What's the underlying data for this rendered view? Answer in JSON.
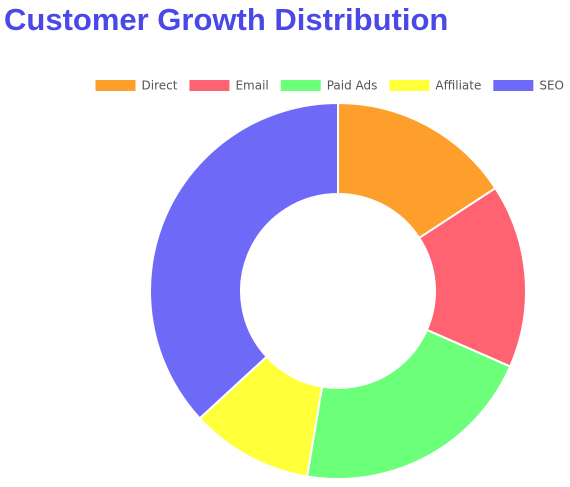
{
  "chart_data": {
    "type": "doughnut",
    "title": "Customer Growth Distribution",
    "categories": [
      "Direct",
      "Email",
      "Paid Ads",
      "Affiliate",
      "SEO"
    ],
    "values": [
      150,
      150,
      200,
      100,
      350
    ],
    "colors": [
      "#ff9f2b",
      "#ff6372",
      "#6bff7a",
      "#ffff3a",
      "#6e6af7"
    ],
    "legend": "top-right"
  }
}
